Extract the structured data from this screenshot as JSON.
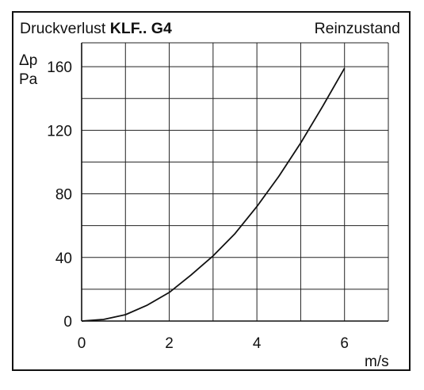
{
  "header": {
    "title_prefix": "Druckverlust",
    "title_bold": "KLF.. G4",
    "subtitle": "Reinzustand"
  },
  "chart_data": {
    "type": "line",
    "title": "Druckverlust KLF.. G4",
    "subtitle": "Reinzustand",
    "ylabel": "Δp",
    "yunit": "Pa",
    "xlabel": "m/s",
    "xlim": [
      0,
      7
    ],
    "ylim": [
      0,
      175
    ],
    "x_ticks": [
      0,
      2,
      4,
      6
    ],
    "y_ticks": [
      0,
      40,
      80,
      120,
      160
    ],
    "grid": true,
    "series": [
      {
        "x": [
          0,
          0.5,
          1,
          1.5,
          2,
          2.5,
          3,
          3.5,
          4,
          4.5,
          5,
          5.5,
          6
        ],
        "values": [
          0,
          1,
          4,
          10,
          18,
          29,
          41,
          55,
          72,
          91,
          112,
          135,
          159
        ]
      }
    ]
  }
}
